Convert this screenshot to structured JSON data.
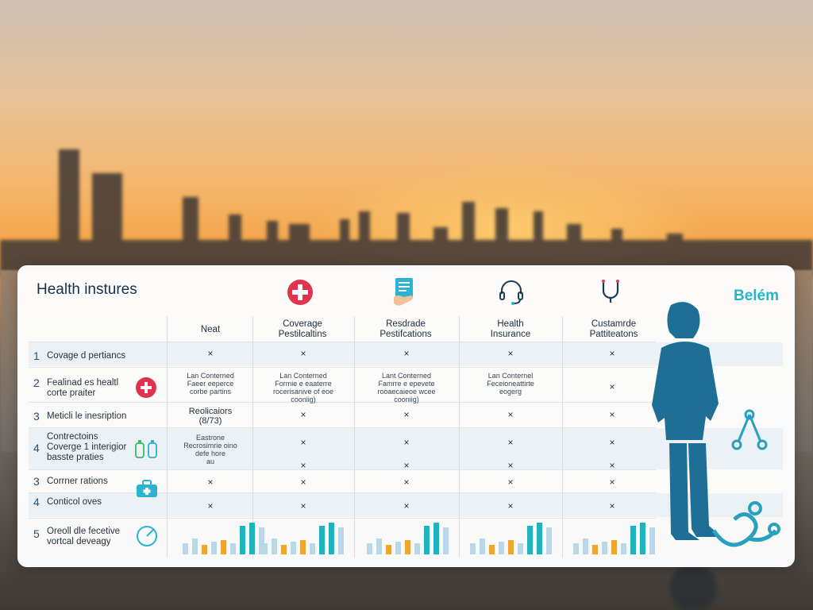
{
  "page": {
    "title": "Health instures",
    "brand": "Belém"
  },
  "icons": [
    "medical-cross-icon",
    "clipboard-hand-icon",
    "headset-icon",
    "stethoscope-icon"
  ],
  "columns": [
    {
      "label": "Neat"
    },
    {
      "label": "Coverage\nPestilcaltins"
    },
    {
      "label": "Resdrade\nPestifcations"
    },
    {
      "label": "Health\nInsurance"
    },
    {
      "label": "Custamrde\nPattiteatons"
    }
  ],
  "rows": [
    {
      "num": "1",
      "label": "Covage d pertiancs",
      "cells": [
        "×",
        "×",
        "×",
        "×",
        "×"
      ]
    },
    {
      "num": "2",
      "label": "Fealinad es healtl\ncorte praiter",
      "cells": [
        "Lan Conterned\nFaeer eeperce\ncorbe partins",
        "Lan Conterned\nFormie e eaaterre\nrocerisanive of eoe\ncooniig)",
        "Lant Conterned\nFamrre e epevete\nrooaecaieoe wcee\ncooniig)",
        "Lan Conternel\nFeceioneattirte\neogerg",
        "×"
      ]
    },
    {
      "num": "3",
      "label": "Meticli le inesription",
      "cells": [
        "Reolicaiors\n(8/73)",
        "×",
        "×",
        "×",
        "×"
      ]
    },
    {
      "num": "4",
      "label": "Contrectoins\nCoverge 1 interigior\nbasste praties",
      "cells": [
        "Eastrone\nRecrosimrie oino\ndefe hore\nau",
        "×\n×",
        "×\n×",
        "×\n×",
        "×\n×"
      ]
    },
    {
      "num": "3",
      "label": "Corrner rations",
      "cells": [
        "×",
        "×",
        "×",
        "×",
        "×"
      ]
    },
    {
      "num": "4",
      "label": "Conticol oves",
      "cells": [
        "×",
        "×",
        "×",
        "×",
        "×"
      ]
    },
    {
      "num": "5",
      "label": "Oreoll dle fecetive\nvortcal deveagy",
      "cells": [
        "",
        "",
        "",
        "",
        ""
      ]
    }
  ],
  "colors": {
    "accent": "#25b5c9",
    "teal_bar": "#1fb3bd",
    "orange_bar": "#f0a530",
    "light_bar": "#b9d7e6",
    "person": "#1f6e96",
    "red_cross": "#e0334f"
  }
}
